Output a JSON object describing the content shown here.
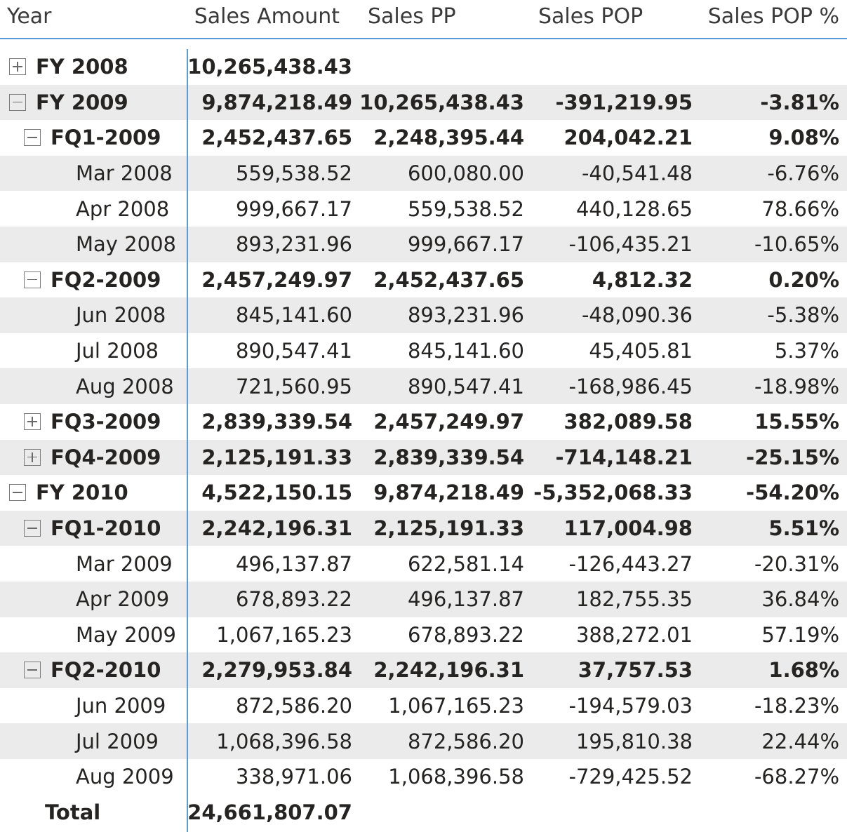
{
  "headers": {
    "year": "Year",
    "sales_amount": "Sales Amount",
    "sales_pp": "Sales PP",
    "sales_pop": "Sales POP",
    "sales_pop_pct": "Sales POP %"
  },
  "rows": [
    {
      "label": "FY 2008",
      "sales": "10,265,438.43",
      "pp": "",
      "pop": "",
      "pct": ""
    },
    {
      "label": "FY 2009",
      "sales": "9,874,218.49",
      "pp": "10,265,438.43",
      "pop": "-391,219.95",
      "pct": "-3.81%"
    },
    {
      "label": "FQ1-2009",
      "sales": "2,452,437.65",
      "pp": "2,248,395.44",
      "pop": "204,042.21",
      "pct": "9.08%"
    },
    {
      "label": "Mar 2008",
      "sales": "559,538.52",
      "pp": "600,080.00",
      "pop": "-40,541.48",
      "pct": "-6.76%"
    },
    {
      "label": "Apr 2008",
      "sales": "999,667.17",
      "pp": "559,538.52",
      "pop": "440,128.65",
      "pct": "78.66%"
    },
    {
      "label": "May 2008",
      "sales": "893,231.96",
      "pp": "999,667.17",
      "pop": "-106,435.21",
      "pct": "-10.65%"
    },
    {
      "label": "FQ2-2009",
      "sales": "2,457,249.97",
      "pp": "2,452,437.65",
      "pop": "4,812.32",
      "pct": "0.20%"
    },
    {
      "label": "Jun 2008",
      "sales": "845,141.60",
      "pp": "893,231.96",
      "pop": "-48,090.36",
      "pct": "-5.38%"
    },
    {
      "label": "Jul 2008",
      "sales": "890,547.41",
      "pp": "845,141.60",
      "pop": "45,405.81",
      "pct": "5.37%"
    },
    {
      "label": "Aug 2008",
      "sales": "721,560.95",
      "pp": "890,547.41",
      "pop": "-168,986.45",
      "pct": "-18.98%"
    },
    {
      "label": "FQ3-2009",
      "sales": "2,839,339.54",
      "pp": "2,457,249.97",
      "pop": "382,089.58",
      "pct": "15.55%"
    },
    {
      "label": "FQ4-2009",
      "sales": "2,125,191.33",
      "pp": "2,839,339.54",
      "pop": "-714,148.21",
      "pct": "-25.15%"
    },
    {
      "label": "FY 2010",
      "sales": "4,522,150.15",
      "pp": "9,874,218.49",
      "pop": "-5,352,068.33",
      "pct": "-54.20%"
    },
    {
      "label": "FQ1-2010",
      "sales": "2,242,196.31",
      "pp": "2,125,191.33",
      "pop": "117,004.98",
      "pct": "5.51%"
    },
    {
      "label": "Mar 2009",
      "sales": "496,137.87",
      "pp": "622,581.14",
      "pop": "-126,443.27",
      "pct": "-20.31%"
    },
    {
      "label": "Apr 2009",
      "sales": "678,893.22",
      "pp": "496,137.87",
      "pop": "182,755.35",
      "pct": "36.84%"
    },
    {
      "label": "May 2009",
      "sales": "1,067,165.23",
      "pp": "678,893.22",
      "pop": "388,272.01",
      "pct": "57.19%"
    },
    {
      "label": "FQ2-2010",
      "sales": "2,279,953.84",
      "pp": "2,242,196.31",
      "pop": "37,757.53",
      "pct": "1.68%"
    },
    {
      "label": "Jun 2009",
      "sales": "872,586.20",
      "pp": "1,067,165.23",
      "pop": "-194,579.03",
      "pct": "-18.23%"
    },
    {
      "label": "Jul 2009",
      "sales": "1,068,396.58",
      "pp": "872,586.20",
      "pop": "195,810.38",
      "pct": "22.44%"
    },
    {
      "label": "Aug 2009",
      "sales": "338,971.06",
      "pp": "1,068,396.58",
      "pop": "-729,425.52",
      "pct": "-68.27%"
    }
  ],
  "total": {
    "label": "Total",
    "sales": "24,661,807.07"
  }
}
